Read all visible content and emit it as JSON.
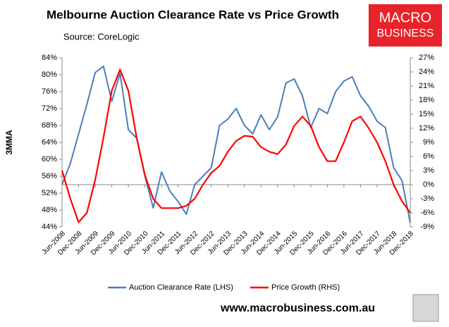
{
  "chart_data": {
    "type": "line",
    "title": "Melbourne Auction Clearance Rate vs Price Growth",
    "subtitle": "Source: CoreLogic",
    "ylabel": "3MMA",
    "annotations": [
      "MACRO",
      "BUSINESS",
      "www.macrobusiness.com.au"
    ],
    "categories": [
      "Jun-2008",
      null,
      "Dec-2008",
      null,
      "Jun-2009",
      null,
      "Dec-2009",
      null,
      "Jun-2010",
      null,
      "Dec-2010",
      null,
      "Jun-2011",
      null,
      "Dec-2011",
      null,
      "Jun-2012",
      null,
      "Dec-2012",
      null,
      "Jun-2013",
      null,
      "Dec-2013",
      null,
      "Jun-2014",
      null,
      "Dec-2014",
      null,
      "Jun-2015",
      null,
      "Dec-2015",
      null,
      "Jun-2016",
      null,
      "Dec-2016",
      null,
      "Jun-2017",
      null,
      "Dec-2017",
      null,
      "Jun-2018",
      null,
      "Dec-2018"
    ],
    "series": [
      {
        "name": "Auction Clearance Rate (LHS)",
        "color": "#4a7ebb",
        "axis": "y",
        "values": [
          54,
          59,
          66,
          73,
          80.5,
          82,
          73.7,
          80.3,
          67,
          65,
          56,
          48.5,
          57,
          52.5,
          50,
          47,
          54,
          56,
          58,
          68,
          69.5,
          72,
          68,
          66,
          70.5,
          67,
          70,
          78,
          79,
          75,
          67.5,
          72,
          70.8,
          76,
          78.5,
          79.5,
          75,
          72.5,
          69,
          67.5,
          58,
          55,
          45
        ]
      },
      {
        "name": "Price Growth (RHS)",
        "color": "#ff0000",
        "axis": "y2",
        "values": [
          3,
          -3,
          -8,
          -6,
          1,
          10,
          20,
          24.5,
          20,
          10,
          2,
          -3,
          -5,
          -5,
          -5,
          -4.5,
          -3,
          0,
          2.5,
          4,
          7,
          9.3,
          10.4,
          10.2,
          8,
          7,
          6.5,
          8.5,
          12.5,
          14.5,
          12.5,
          8,
          5,
          5,
          9,
          13.5,
          14.5,
          12,
          9,
          5,
          0,
          -3.5,
          -6
        ]
      }
    ],
    "ylim": [
      44,
      84
    ],
    "yticks": [
      {
        "value": 44,
        "label": "44%"
      },
      {
        "value": 48,
        "label": "48%"
      },
      {
        "value": 52,
        "label": "52%"
      },
      {
        "value": 56,
        "label": "56%"
      },
      {
        "value": 60,
        "label": "60%"
      },
      {
        "value": 64,
        "label": "64%"
      },
      {
        "value": 68,
        "label": "68%"
      },
      {
        "value": 72,
        "label": "72%"
      },
      {
        "value": 76,
        "label": "76%"
      },
      {
        "value": 80,
        "label": "80%"
      },
      {
        "value": 84,
        "label": "84%"
      }
    ],
    "y2lim": [
      -9,
      27
    ],
    "y2ticks": [
      {
        "value": -9,
        "label": "-9%"
      },
      {
        "value": -6,
        "label": "-6%"
      },
      {
        "value": -3,
        "label": "-3%"
      },
      {
        "value": 0,
        "label": "0%"
      },
      {
        "value": 3,
        "label": "3%"
      },
      {
        "value": 6,
        "label": "6%"
      },
      {
        "value": 9,
        "label": "9%"
      },
      {
        "value": 12,
        "label": "12%"
      },
      {
        "value": 15,
        "label": "15%"
      },
      {
        "value": 18,
        "label": "18%"
      },
      {
        "value": 21,
        "label": "21%"
      },
      {
        "value": 24,
        "label": "24%"
      },
      {
        "value": 27,
        "label": "27%"
      }
    ],
    "legend": "bottom"
  }
}
